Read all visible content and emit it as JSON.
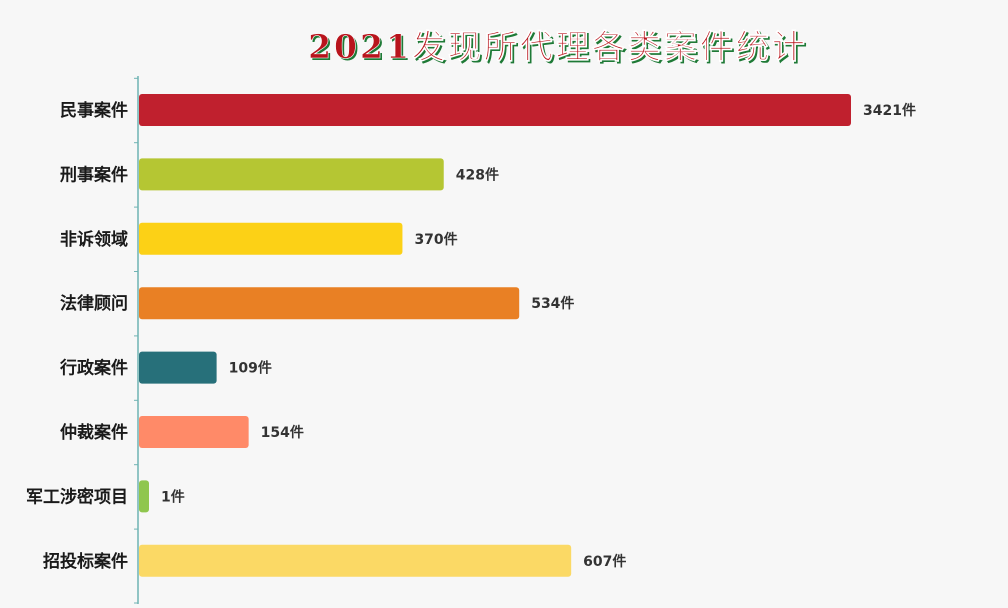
{
  "chart_data": {
    "type": "bar",
    "orientation": "horizontal",
    "title": "2021发现所代理各类案件统计",
    "categories": [
      "民事案件",
      "刑事案件",
      "非诉领域",
      "法律顾问",
      "行政案件",
      "仲裁案件",
      "军工涉密项目",
      "招投标案件"
    ],
    "values": [
      3421,
      428,
      370,
      534,
      109,
      154,
      1,
      607
    ],
    "value_labels": [
      "3421件",
      "428件",
      "370件",
      "534件",
      "109件",
      "154件",
      "1件",
      "607件"
    ],
    "colors": [
      "#c0202e",
      "#b5c633",
      "#fcd116",
      "#e98024",
      "#27707a",
      "#ff8a68",
      "#8fc64e",
      "#fbd965"
    ],
    "title_color": "#b8141c",
    "title_shadow_color": "#1e7a36",
    "axis_color": "#6fb3b3",
    "grid": false,
    "legend": "none",
    "axis_scale": "piecewise"
  }
}
